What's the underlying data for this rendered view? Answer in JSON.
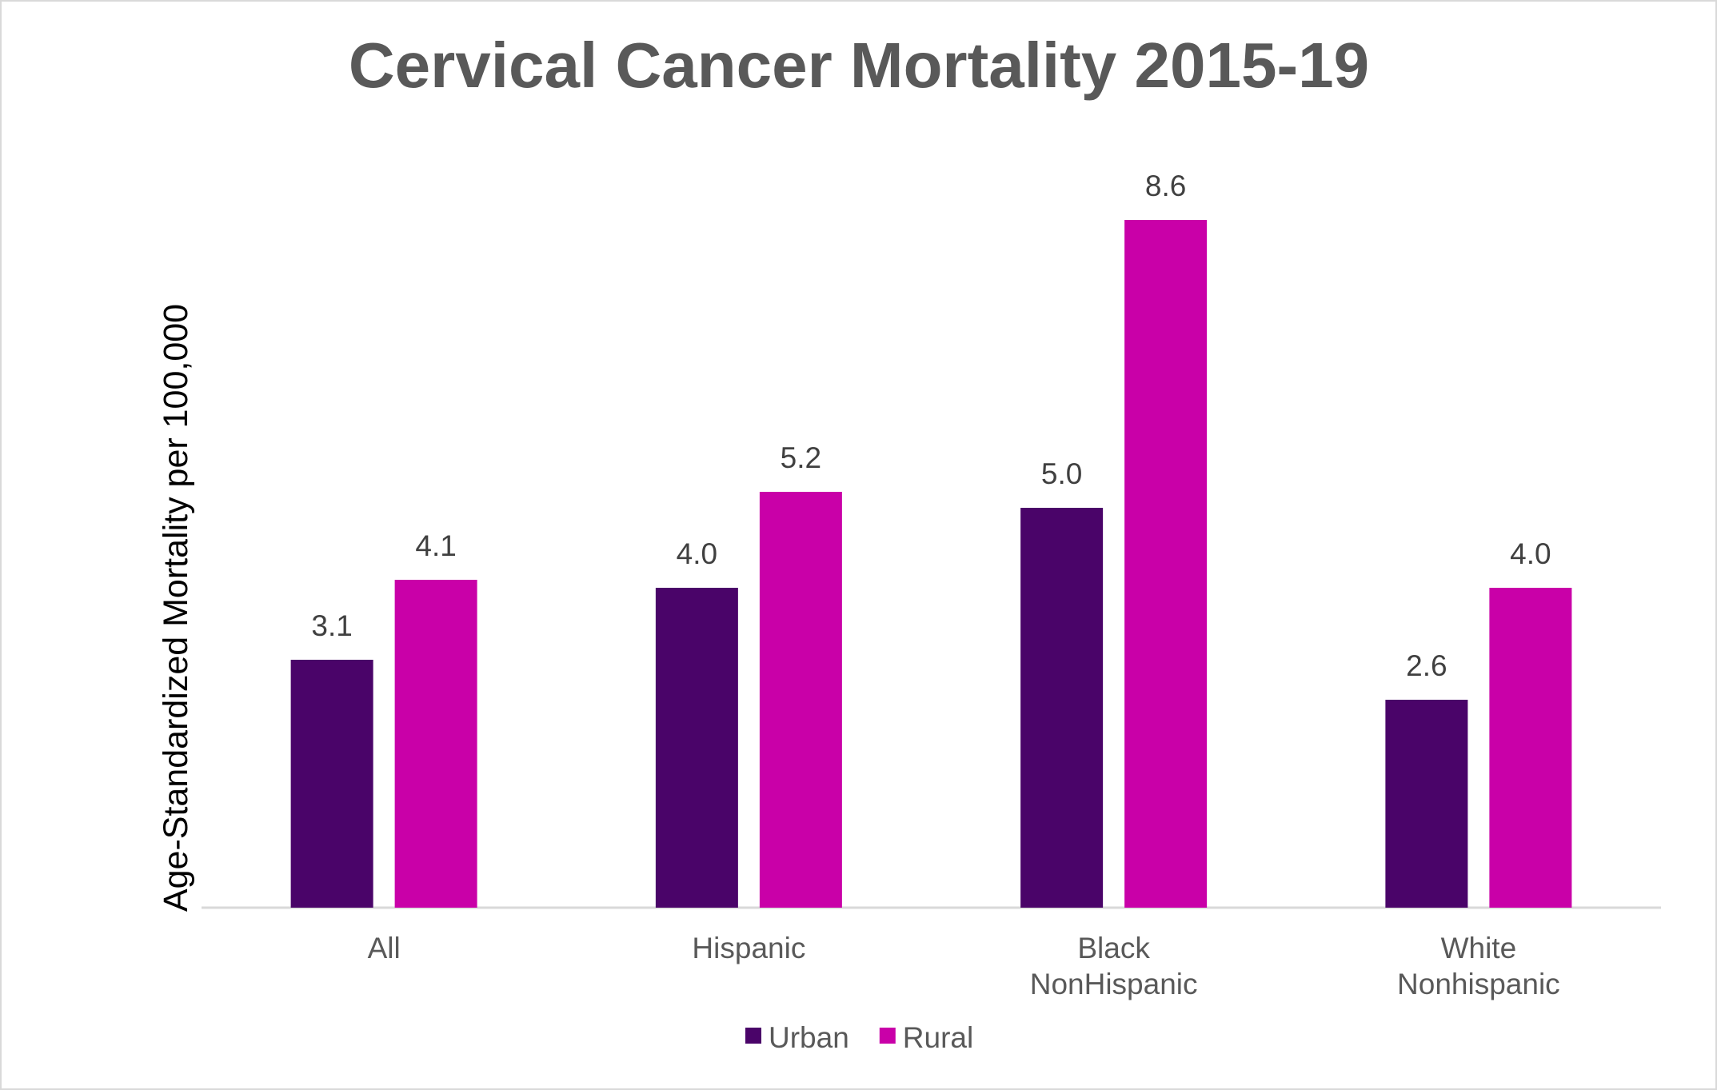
{
  "chart_data": {
    "type": "bar",
    "title": "Cervical Cancer Mortality 2015-19",
    "xlabel": "",
    "ylabel": "Age-Standardized Mortality per 100,000",
    "categories": [
      [
        "All"
      ],
      [
        "Hispanic"
      ],
      [
        "Black",
        "NonHispanic"
      ],
      [
        "White",
        "Nonhispanic"
      ]
    ],
    "series": [
      {
        "name": "Urban",
        "color": "#4a0469",
        "values": [
          3.1,
          4.0,
          5.0,
          2.6
        ],
        "labels": [
          "3.1",
          "4.0",
          "5.0",
          "2.6"
        ]
      },
      {
        "name": "Rural",
        "color": "#c900a8",
        "values": [
          4.1,
          5.2,
          8.6,
          4.0
        ],
        "labels": [
          "4.1",
          "5.2",
          "8.6",
          "4.0"
        ]
      }
    ],
    "ylim": [
      0,
      10
    ],
    "grid": false,
    "legend": "bottom",
    "axis_color": "#d9d9d9"
  }
}
